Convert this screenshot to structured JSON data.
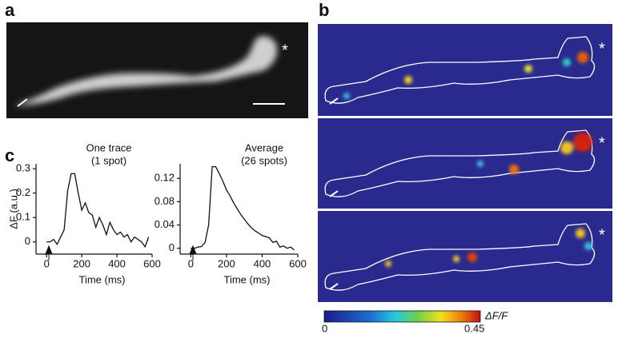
{
  "panels": {
    "a": {
      "label": "a",
      "marker": "*"
    },
    "b": {
      "label": "b",
      "markers": [
        "*",
        "*",
        "*"
      ],
      "colorbar": {
        "min": 0,
        "max": 0.45,
        "title": "ΔF/F"
      }
    },
    "c": {
      "label": "c"
    }
  },
  "chart_data": [
    {
      "type": "line",
      "title": "One trace",
      "subtitle": "(1 spot)",
      "y_label": "ΔF (a.u.)",
      "x_label": "Time (ms)",
      "x": [
        0,
        20,
        40,
        60,
        80,
        100,
        120,
        140,
        160,
        180,
        200,
        220,
        240,
        260,
        280,
        300,
        320,
        340,
        360,
        380,
        400,
        420,
        440,
        460,
        480,
        500,
        520,
        540,
        560,
        580
      ],
      "series": [
        {
          "color": "#111111",
          "values": [
            0,
            0,
            0.01,
            -0.01,
            0.02,
            0.05,
            0.21,
            0.28,
            0.28,
            0.2,
            0.13,
            0.16,
            0.12,
            0.11,
            0.06,
            0.1,
            0.07,
            0.03,
            0.08,
            0.05,
            0.03,
            0.04,
            0.02,
            0.03,
            0,
            0.02,
            0.01,
            0,
            -0.02,
            0.02
          ]
        }
      ],
      "xlim": [
        -60,
        600
      ],
      "xticks": [
        0,
        200,
        400,
        600
      ],
      "ylim": [
        -0.05,
        0.32
      ],
      "yticks": [
        0,
        0.1,
        0.2,
        0.3
      ]
    },
    {
      "type": "line",
      "title": "Average",
      "subtitle": "(26 spots)",
      "x_label": "Time (ms)",
      "x": [
        0,
        20,
        40,
        60,
        80,
        100,
        120,
        140,
        160,
        180,
        200,
        220,
        240,
        260,
        280,
        300,
        320,
        340,
        360,
        380,
        400,
        420,
        440,
        460,
        480,
        500,
        520,
        540,
        560,
        580
      ],
      "series": [
        {
          "color": "#111111",
          "values": [
            0,
            0,
            0.002,
            0.003,
            0.01,
            0.04,
            0.14,
            0.14,
            0.128,
            0.115,
            0.1,
            0.09,
            0.078,
            0.068,
            0.058,
            0.05,
            0.042,
            0.035,
            0.03,
            0.026,
            0.022,
            0.02,
            0.018,
            0.01,
            0.012,
            0.002,
            0.004,
            0,
            0.002,
            -0.003
          ]
        }
      ],
      "xlim": [
        -60,
        600
      ],
      "xticks": [
        0,
        200,
        400,
        600
      ],
      "ylim": [
        -0.01,
        0.145
      ],
      "yticks": [
        0,
        0.04,
        0.08,
        0.12
      ]
    }
  ]
}
